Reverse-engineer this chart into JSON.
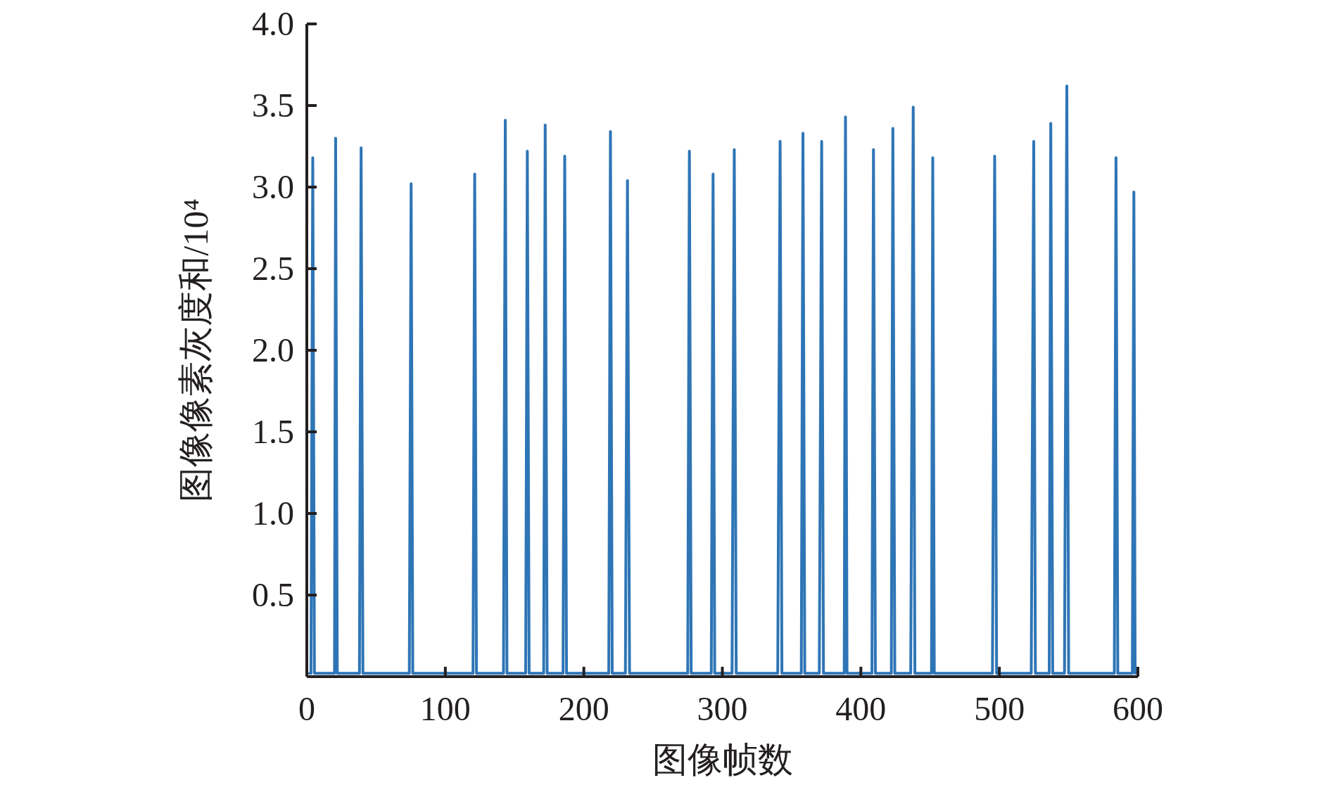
{
  "chart_data": {
    "type": "line",
    "xlabel": "图像帧数",
    "ylabel": "图像像素灰度和/10⁴",
    "xlim": [
      0,
      600
    ],
    "xticks": [
      0,
      100,
      200,
      300,
      400,
      500,
      600
    ],
    "ylim": [
      0,
      4
    ],
    "yticks": [
      {
        "value": 0.5,
        "label": "0.5"
      },
      {
        "value": 1,
        "label": "1.0"
      },
      {
        "value": 1.5,
        "label": "1.5"
      },
      {
        "value": 2,
        "label": "2.0"
      },
      {
        "value": 2.5,
        "label": "2.5"
      },
      {
        "value": 3,
        "label": "3.0"
      },
      {
        "value": 3.5,
        "label": "3.5"
      },
      {
        "value": 4,
        "label": "4.0"
      }
    ],
    "grid": false,
    "marker": "none",
    "line_style": "solid",
    "series": [
      {
        "color": "#2e75b6",
        "x": [
          2,
          3,
          4.3,
          5.5,
          20,
          20.8,
          22,
          38,
          39.2,
          40.5,
          74,
          75.3,
          76.5,
          120,
          121.2,
          122.5,
          142,
          143.3,
          144.5,
          158,
          159.2,
          160.5,
          171,
          172.1,
          173.5,
          185,
          186.2,
          187.5,
          218,
          219.2,
          220.5,
          230,
          231.5,
          233,
          275,
          276.2,
          277.5,
          292,
          293.3,
          294.5,
          307,
          308.6,
          310,
          340,
          341.7,
          343,
          357,
          358.2,
          359.5,
          370,
          371.7,
          373,
          388,
          388.9,
          390,
          408,
          409.1,
          410.5,
          422,
          423.1,
          424.5,
          436,
          437.8,
          439,
          451,
          451.9,
          453,
          495,
          496.6,
          498,
          523,
          524.8,
          526,
          536,
          537.1,
          538.5,
          547,
          548.7,
          550,
          583,
          584.2,
          585.5,
          596,
          597.1,
          598
        ],
        "values": [
          0.02,
          0.02,
          3.18,
          0.02,
          0.02,
          3.3,
          0.02,
          0.02,
          3.24,
          0.02,
          0.02,
          3.02,
          0.02,
          0.02,
          3.08,
          0.02,
          0.02,
          3.41,
          0.02,
          0.02,
          3.22,
          0.02,
          0.02,
          3.38,
          0.02,
          0.02,
          3.19,
          0.02,
          0.02,
          3.34,
          0.02,
          0.02,
          3.04,
          0.02,
          0.02,
          3.22,
          0.02,
          0.02,
          3.08,
          0.02,
          0.02,
          3.23,
          0.02,
          0.02,
          3.28,
          0.02,
          0.02,
          3.33,
          0.02,
          0.02,
          3.28,
          0.02,
          0.02,
          3.43,
          0.02,
          0.02,
          3.23,
          0.02,
          0.02,
          3.36,
          0.02,
          0.02,
          3.49,
          0.02,
          0.02,
          3.18,
          0.02,
          0.02,
          3.19,
          0.02,
          0.02,
          3.28,
          0.02,
          0.02,
          3.39,
          0.02,
          0.02,
          3.62,
          0.02,
          0.02,
          3.18,
          0.02,
          0.02,
          2.97,
          0.02
        ]
      }
    ]
  }
}
